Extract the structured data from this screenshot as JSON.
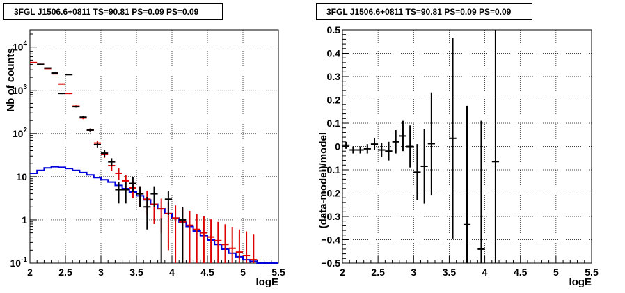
{
  "colors": {
    "data": "#000000",
    "model": "#dd0000",
    "source": "#0000dd",
    "grid": "#000000",
    "frame": "#000000"
  },
  "chart_data": [
    {
      "type": "line",
      "title": "3FGL J1506.6+0811 TS=90.81 PS=0.09 PS=0.09",
      "xlabel": "logE",
      "ylabel": "Nb of counts",
      "xlim": [
        2,
        5.5
      ],
      "ylim": [
        0.1,
        25000
      ],
      "log_y": true,
      "grid": true,
      "x_ticks": [
        "2",
        "2.5",
        "3",
        "3.5",
        "4",
        "4.5",
        "5",
        "5.5"
      ],
      "y_ticks": [
        {
          "value": 0.1,
          "base": "10",
          "exp": "-1"
        },
        {
          "value": 1,
          "base": "1",
          "exp": ""
        },
        {
          "value": 10,
          "base": "10",
          "exp": ""
        },
        {
          "value": 100,
          "base": "10",
          "exp": "2"
        },
        {
          "value": 1000,
          "base": "10",
          "exp": "3"
        },
        {
          "value": 10000,
          "base": "10",
          "exp": "4"
        }
      ],
      "series": [
        {
          "role": "data",
          "points": [
            {
              "x": 2.15,
              "y": 4000,
              "yerr": 60
            },
            {
              "x": 2.25,
              "y": 3300,
              "yerr": 57
            },
            {
              "x": 2.35,
              "y": 2500,
              "yerr": 50
            },
            {
              "x": 2.45,
              "y": 850,
              "yerr": 29
            },
            {
              "x": 2.55,
              "y": 2300,
              "yerr": 48
            },
            {
              "x": 2.65,
              "y": 420,
              "yerr": 20
            },
            {
              "x": 2.75,
              "y": 240,
              "yerr": 15
            },
            {
              "x": 2.85,
              "y": 120,
              "yerr": 11
            },
            {
              "x": 2.95,
              "y": 55,
              "yerr": 7.4
            },
            {
              "x": 3.05,
              "y": 35,
              "yerr": 6
            },
            {
              "x": 3.15,
              "y": 22,
              "yerr": 4.7
            },
            {
              "x": 3.25,
              "y": 5,
              "yerr": 2.6
            },
            {
              "x": 3.35,
              "y": 5,
              "yerr": 2.6
            },
            {
              "x": 3.45,
              "y": 7,
              "yerr": 2.6
            },
            {
              "x": 3.55,
              "y": 4,
              "yerr": 2
            },
            {
              "x": 3.65,
              "y": 2,
              "yerr": 1.4
            },
            {
              "x": 3.75,
              "y": 4,
              "yerr": 2
            },
            {
              "x": 3.85,
              "y": 0.1,
              "yerr": 1
            },
            {
              "x": 3.95,
              "y": 3,
              "yerr": 1.7
            },
            {
              "x": 4.15,
              "y": 1,
              "yerr": 1
            }
          ]
        },
        {
          "role": "model",
          "points": [
            {
              "x": 2.05,
              "y": 4400,
              "yerr": 66
            },
            {
              "x": 2.15,
              "y": 4000,
              "yerr": 63
            },
            {
              "x": 2.25,
              "y": 3200,
              "yerr": 56
            },
            {
              "x": 2.35,
              "y": 2400,
              "yerr": 49
            },
            {
              "x": 2.45,
              "y": 1400,
              "yerr": 37
            },
            {
              "x": 2.55,
              "y": 850,
              "yerr": 29
            },
            {
              "x": 2.65,
              "y": 430,
              "yerr": 21
            },
            {
              "x": 2.75,
              "y": 230,
              "yerr": 15
            },
            {
              "x": 2.85,
              "y": 120,
              "yerr": 11
            },
            {
              "x": 2.95,
              "y": 60,
              "yerr": 7.7
            },
            {
              "x": 3.05,
              "y": 33,
              "yerr": 5.7
            },
            {
              "x": 3.15,
              "y": 18,
              "yerr": 4.2
            },
            {
              "x": 3.25,
              "y": 12,
              "yerr": 3.5
            },
            {
              "x": 3.35,
              "y": 8,
              "yerr": 2.8
            },
            {
              "x": 3.45,
              "y": 5.5,
              "yerr": 2.3
            },
            {
              "x": 3.55,
              "y": 4,
              "yerr": 2
            },
            {
              "x": 3.65,
              "y": 3,
              "yerr": 1.7
            },
            {
              "x": 3.75,
              "y": 2.3,
              "yerr": 1.5
            },
            {
              "x": 3.85,
              "y": 1.8,
              "yerr": 1.3
            },
            {
              "x": 3.95,
              "y": 1.4,
              "yerr": 1.2
            },
            {
              "x": 4.05,
              "y": 1.1,
              "yerr": 1.05
            },
            {
              "x": 4.15,
              "y": 0.9,
              "yerr": 0.95
            },
            {
              "x": 4.25,
              "y": 0.75,
              "yerr": 0.87
            },
            {
              "x": 4.35,
              "y": 0.6,
              "yerr": 0.77
            },
            {
              "x": 4.45,
              "y": 0.5,
              "yerr": 0.71
            },
            {
              "x": 4.55,
              "y": 0.4,
              "yerr": 0.63
            },
            {
              "x": 4.65,
              "y": 0.33,
              "yerr": 0.57
            },
            {
              "x": 4.75,
              "y": 0.27,
              "yerr": 0.52
            },
            {
              "x": 4.85,
              "y": 0.22,
              "yerr": 0.47
            },
            {
              "x": 4.95,
              "y": 0.18,
              "yerr": 0.42
            },
            {
              "x": 5.05,
              "y": 0.15,
              "yerr": 0.39
            },
            {
              "x": 5.15,
              "y": 0.12,
              "yerr": 0.35
            }
          ]
        },
        {
          "role": "source",
          "step": true,
          "bin_width": 0.1,
          "points": [
            {
              "x": 2.05,
              "y": 12
            },
            {
              "x": 2.15,
              "y": 14
            },
            {
              "x": 2.25,
              "y": 16
            },
            {
              "x": 2.35,
              "y": 17
            },
            {
              "x": 2.45,
              "y": 16.5
            },
            {
              "x": 2.55,
              "y": 15.5
            },
            {
              "x": 2.65,
              "y": 14
            },
            {
              "x": 2.75,
              "y": 12.5
            },
            {
              "x": 2.85,
              "y": 11
            },
            {
              "x": 2.95,
              "y": 9.5
            },
            {
              "x": 3.05,
              "y": 8.5
            },
            {
              "x": 3.15,
              "y": 7.5
            },
            {
              "x": 3.25,
              "y": 6.3
            },
            {
              "x": 3.35,
              "y": 5.3
            },
            {
              "x": 3.45,
              "y": 4.4
            },
            {
              "x": 3.55,
              "y": 3.6
            },
            {
              "x": 3.65,
              "y": 2.9
            },
            {
              "x": 3.75,
              "y": 2.3
            },
            {
              "x": 3.85,
              "y": 1.8
            },
            {
              "x": 3.95,
              "y": 1.4
            },
            {
              "x": 4.05,
              "y": 1.1
            },
            {
              "x": 4.15,
              "y": 0.88
            },
            {
              "x": 4.25,
              "y": 0.7
            },
            {
              "x": 4.35,
              "y": 0.55
            },
            {
              "x": 4.45,
              "y": 0.43
            },
            {
              "x": 4.55,
              "y": 0.34
            },
            {
              "x": 4.65,
              "y": 0.27
            },
            {
              "x": 4.75,
              "y": 0.21
            },
            {
              "x": 4.85,
              "y": 0.17
            },
            {
              "x": 4.95,
              "y": 0.14
            },
            {
              "x": 5.05,
              "y": 0.12
            },
            {
              "x": 5.15,
              "y": 0.11
            },
            {
              "x": 5.25,
              "y": 0.1
            },
            {
              "x": 5.35,
              "y": 0.1
            },
            {
              "x": 5.45,
              "y": 0.1
            }
          ]
        }
      ]
    },
    {
      "type": "scatter",
      "title": "3FGL J1506.6+0811 TS=90.81 PS=0.09 PS=0.09",
      "xlabel": "logE",
      "ylabel": "(data-model)/model",
      "xlim": [
        2,
        5.5
      ],
      "ylim": [
        -0.5,
        0.5
      ],
      "grid": true,
      "x_ticks": [
        "2",
        "2.5",
        "3",
        "3.5",
        "4",
        "4.5",
        "5",
        "5.5"
      ],
      "y_ticks": [
        "−0.5",
        "−0.4",
        "−0.3",
        "−0.2",
        "−0.1",
        "0",
        "0.1",
        "0.2",
        "0.3",
        "0.4",
        "0.5"
      ],
      "series": [
        {
          "role": "data",
          "points": [
            {
              "x": 2.05,
              "y": 0.005,
              "yerr": 0.015
            },
            {
              "x": 2.15,
              "y": -0.015,
              "yerr": 0.015
            },
            {
              "x": 2.25,
              "y": -0.015,
              "yerr": 0.015
            },
            {
              "x": 2.35,
              "y": -0.01,
              "yerr": 0.02
            },
            {
              "x": 2.45,
              "y": 0.01,
              "yerr": 0.025
            },
            {
              "x": 2.55,
              "y": -0.015,
              "yerr": 0.03
            },
            {
              "x": 2.65,
              "y": -0.02,
              "yerr": 0.04
            },
            {
              "x": 2.75,
              "y": 0.02,
              "yerr": 0.05
            },
            {
              "x": 2.85,
              "y": 0.045,
              "yerr": 0.065
            },
            {
              "x": 2.95,
              "y": 0.0,
              "yerr": 0.09
            },
            {
              "x": 3.05,
              "y": -0.11,
              "yerr": 0.12
            },
            {
              "x": 3.15,
              "y": -0.085,
              "yerr": 0.16
            },
            {
              "x": 3.25,
              "y": 0.012,
              "yerr": 0.22
            },
            {
              "x": 3.55,
              "y": 0.035,
              "yerr": 0.43
            },
            {
              "x": 3.75,
              "y": -0.335,
              "yerr": 0.51
            },
            {
              "x": 3.95,
              "y": -0.44,
              "yerr": 0.55
            },
            {
              "x": 4.15,
              "y": -0.065,
              "yerr": 0.7
            }
          ]
        }
      ]
    }
  ]
}
